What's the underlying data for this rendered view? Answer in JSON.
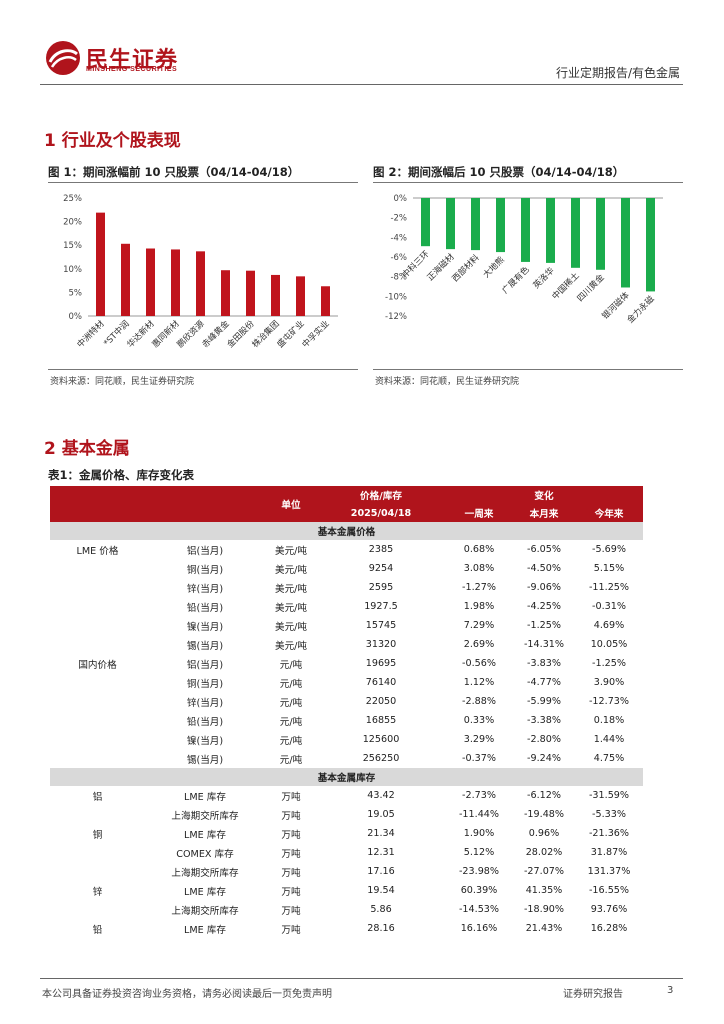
{
  "header": {
    "logo_cn": "民生证券",
    "logo_en": "MINSHENG SECURITIES",
    "category": "行业定期报告/有色金属"
  },
  "section1": {
    "title": "1 行业及个股表现"
  },
  "section2": {
    "title": "2 基本金属"
  },
  "figures": {
    "fig1_title": "图 1：期间涨幅前 10 只股票（04/14-04/18）",
    "fig2_title": "图 2：期间涨幅后 10 只股票（04/14-04/18）",
    "fig1_source": "资料来源：同花顺，民生证券研究院",
    "fig2_source": "资料来源：同花顺，民生证券研究院"
  },
  "chart_data": [
    {
      "type": "bar",
      "categories": [
        "中洲特材",
        "*ST中润",
        "华达新材",
        "惠同新材",
        "鹏欣资源",
        "赤峰黄金",
        "金田股份",
        "株冶集团",
        "盛屯矿业",
        "中孚实业"
      ],
      "values": [
        21.9,
        15.3,
        14.3,
        14.1,
        13.7,
        9.7,
        9.6,
        8.7,
        8.4,
        6.3
      ],
      "ylim": [
        0,
        25
      ],
      "yticks": [
        "0%",
        "5%",
        "10%",
        "15%",
        "20%",
        "25%"
      ],
      "color": "#c0141c",
      "grid": false
    },
    {
      "type": "bar",
      "categories": [
        "中科三环",
        "正海磁材",
        "西部材料",
        "大地熊",
        "广晟有色",
        "英洛华",
        "中国稀土",
        "四川黄金",
        "银河磁体",
        "金力永磁"
      ],
      "values": [
        -4.9,
        -5.2,
        -5.3,
        -5.5,
        -6.5,
        -6.6,
        -7.1,
        -7.3,
        -9.1,
        -9.5
      ],
      "ylim": [
        -12,
        0
      ],
      "yticks": [
        "0%",
        "-2%",
        "-4%",
        "-6%",
        "-8%",
        "-10%",
        "-12%"
      ],
      "color": "#1aac4c",
      "grid": false
    }
  ],
  "table": {
    "title": "表1：金属价格、库存变化表",
    "header": {
      "unit": "单位",
      "price_stock": "价格/库存",
      "date": "2025/04/18",
      "change": "变化",
      "week": "一周来",
      "month": "本月来",
      "year": "今年来"
    },
    "sub1": "基本金属价格",
    "sub2": "基本金属库存",
    "price_rows": [
      {
        "group": "LME 价格",
        "item": "铝(当月)",
        "unit": "美元/吨",
        "value": "2385",
        "week": "0.68%",
        "month": "-6.05%",
        "year": "-5.69%"
      },
      {
        "group": "",
        "item": "铜(当月)",
        "unit": "美元/吨",
        "value": "9254",
        "week": "3.08%",
        "month": "-4.50%",
        "year": "5.15%"
      },
      {
        "group": "",
        "item": "锌(当月)",
        "unit": "美元/吨",
        "value": "2595",
        "week": "-1.27%",
        "month": "-9.06%",
        "year": "-11.25%"
      },
      {
        "group": "",
        "item": "铅(当月)",
        "unit": "美元/吨",
        "value": "1927.5",
        "week": "1.98%",
        "month": "-4.25%",
        "year": "-0.31%"
      },
      {
        "group": "",
        "item": "镍(当月)",
        "unit": "美元/吨",
        "value": "15745",
        "week": "7.29%",
        "month": "-1.25%",
        "year": "4.69%"
      },
      {
        "group": "",
        "item": "锡(当月)",
        "unit": "美元/吨",
        "value": "31320",
        "week": "2.69%",
        "month": "-14.31%",
        "year": "10.05%"
      },
      {
        "group": "国内价格",
        "item": "铝(当月)",
        "unit": "元/吨",
        "value": "19695",
        "week": "-0.56%",
        "month": "-3.83%",
        "year": "-1.25%"
      },
      {
        "group": "",
        "item": "铜(当月)",
        "unit": "元/吨",
        "value": "76140",
        "week": "1.12%",
        "month": "-4.77%",
        "year": "3.90%"
      },
      {
        "group": "",
        "item": "锌(当月)",
        "unit": "元/吨",
        "value": "22050",
        "week": "-2.88%",
        "month": "-5.99%",
        "year": "-12.73%"
      },
      {
        "group": "",
        "item": "铅(当月)",
        "unit": "元/吨",
        "value": "16855",
        "week": "0.33%",
        "month": "-3.38%",
        "year": "0.18%"
      },
      {
        "group": "",
        "item": "镍(当月)",
        "unit": "元/吨",
        "value": "125600",
        "week": "3.29%",
        "month": "-2.80%",
        "year": "1.44%"
      },
      {
        "group": "",
        "item": "锡(当月)",
        "unit": "元/吨",
        "value": "256250",
        "week": "-0.37%",
        "month": "-9.24%",
        "year": "4.75%"
      }
    ],
    "stock_rows": [
      {
        "group": "铝",
        "item": "LME 库存",
        "unit": "万吨",
        "value": "43.42",
        "week": "-2.73%",
        "month": "-6.12%",
        "year": "-31.59%"
      },
      {
        "group": "",
        "item": "上海期交所库存",
        "unit": "万吨",
        "value": "19.05",
        "week": "-11.44%",
        "month": "-19.48%",
        "year": "-5.33%"
      },
      {
        "group": "铜",
        "item": "LME 库存",
        "unit": "万吨",
        "value": "21.34",
        "week": "1.90%",
        "month": "0.96%",
        "year": "-21.36%"
      },
      {
        "group": "",
        "item": "COMEX 库存",
        "unit": "万吨",
        "value": "12.31",
        "week": "5.12%",
        "month": "28.02%",
        "year": "31.87%"
      },
      {
        "group": "",
        "item": "上海期交所库存",
        "unit": "万吨",
        "value": "17.16",
        "week": "-23.98%",
        "month": "-27.07%",
        "year": "131.37%"
      },
      {
        "group": "锌",
        "item": "LME 库存",
        "unit": "万吨",
        "value": "19.54",
        "week": "60.39%",
        "month": "41.35%",
        "year": "-16.55%"
      },
      {
        "group": "",
        "item": "上海期交所库存",
        "unit": "万吨",
        "value": "5.86",
        "week": "-14.53%",
        "month": "-18.90%",
        "year": "93.76%"
      },
      {
        "group": "铅",
        "item": "LME 库存",
        "unit": "万吨",
        "value": "28.16",
        "week": "16.16%",
        "month": "21.43%",
        "year": "16.28%"
      }
    ]
  },
  "footer": {
    "disclaimer": "本公司具备证券投资咨询业务资格，请务必阅读最后一页免责声明",
    "report_type": "证券研究报告",
    "page": "3"
  }
}
